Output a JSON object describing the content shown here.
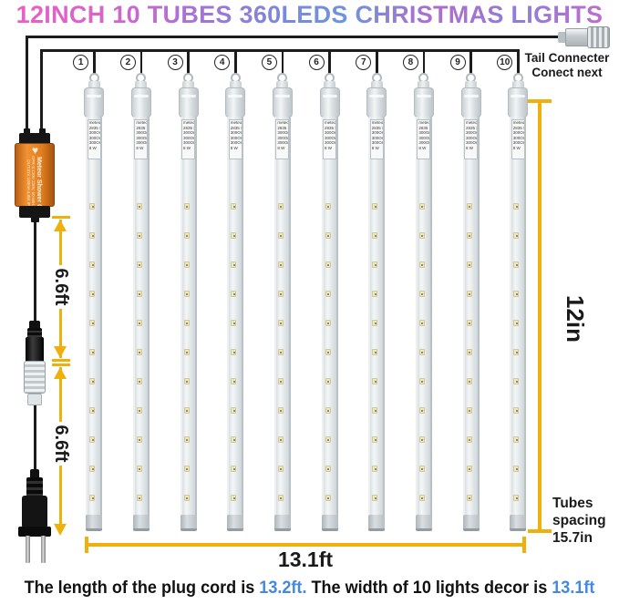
{
  "title": "12INCH 10 TUBES 360LEDS CHRISTMAS LIGHTS",
  "colors": {
    "dimension_yellow": "#F0B00C",
    "footer_value_blue": "#4489DC",
    "title_gradient_pink": "#EC5FC4",
    "title_gradient_blue": "#6D95DE",
    "adapter_orange": "#E07D1F"
  },
  "tail_connector": {
    "line1": "Tail Connecter",
    "line2": "Conect next"
  },
  "adapter": {
    "heart_icon": "heart-logo",
    "brand": "Meteor Shower CE",
    "spec1": "OPR-S:120V 220V, 50-60Hz CA",
    "spec2": "OUT:31V 100mA 4.8W IP44"
  },
  "dimensions": {
    "cord_segment1": "6.6ft",
    "cord_segment2": "6.6ft",
    "tube_length": "12in",
    "total_width": "13.1ft",
    "spacing_line1": "Tubes",
    "spacing_line2": "spacing",
    "spacing_line3": "15.7in"
  },
  "tubes": {
    "numbers": [
      "1",
      "2",
      "3",
      "4",
      "5",
      "6",
      "7",
      "8",
      "9",
      "10"
    ],
    "label_lines": [
      "meteor",
      "2835 S",
      "300Om",
      "300Om",
      "300Om",
      "8 W"
    ],
    "leds_per_tube_visible": 11
  },
  "footer": {
    "part1": "The length of the plug cord is ",
    "value1": "13.2ft.",
    "part2": " The width of 10 lights decor is ",
    "value2": "13.1ft"
  }
}
